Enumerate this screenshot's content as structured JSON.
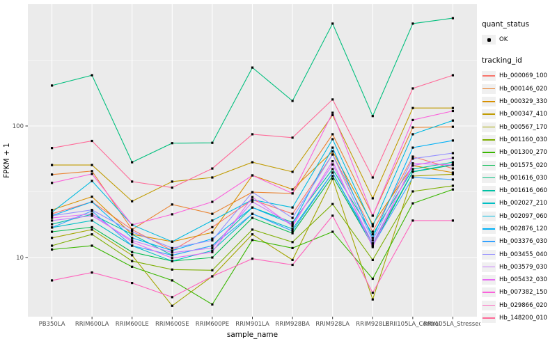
{
  "figure": {
    "background": "#FFFFFF",
    "panel_background": "#EBEBEB",
    "grid_color": "#FFFFFF",
    "tick_color": "#333333",
    "tick_label_color": "#4D4D4D",
    "point_color": "#000000"
  },
  "axes": {
    "x_title": "sample_name",
    "y_title": "FPKM + 1",
    "y_tick_labels": [
      "100",
      "10"
    ],
    "y_tick_values": [
      100,
      10
    ],
    "y_minor_values": [
      316.23,
      31.62
    ]
  },
  "legend": {
    "quant_title": "quant_status",
    "quant_items": [
      {
        "label": "OK"
      }
    ],
    "tracking_title": "tracking_id"
  },
  "chart_data": {
    "type": "line",
    "title": "",
    "xlabel": "sample_name",
    "ylabel": "FPKM + 1",
    "y_scale": "log10",
    "ylim": [
      3.5,
      850
    ],
    "grid": true,
    "legend_position": "right",
    "point_marker": "filled-square",
    "x_categories": [
      "PB350LA",
      "RRIM600LA",
      "RRIM600LE",
      "RRIM600SE",
      "RRIM600PE",
      "RRIM901LA",
      "RRIM928BA",
      "RRIM928LA",
      "RRIM928LE",
      "RRII105LA_Control",
      "RRII105LA_Stressed"
    ],
    "series": [
      {
        "name": "Hb_000069_100",
        "color": "#F8766D",
        "values": [
          21.5,
          26.5,
          16.3,
          11.3,
          17.0,
          27.5,
          21.5,
          60.7,
          15.7,
          58.5,
          47.5
        ]
      },
      {
        "name": "Hb_000146_020",
        "color": "#EA8331",
        "values": [
          42.7,
          45.4,
          16.3,
          25.3,
          21.5,
          31.4,
          30.7,
          86.5,
          20.8,
          97.5,
          98.6
        ]
      },
      {
        "name": "Hb_000329_330",
        "color": "#D89000",
        "values": [
          23.0,
          29.0,
          15.0,
          13.2,
          15.5,
          42.1,
          33.0,
          64.0,
          17.9,
          50.0,
          44.2
        ]
      },
      {
        "name": "Hb_000347_410",
        "color": "#C09B00",
        "values": [
          50.5,
          50.5,
          26.8,
          37.8,
          40.6,
          53.0,
          44.8,
          121.0,
          28.2,
          137.0,
          137.0
        ]
      },
      {
        "name": "Hb_000567_170",
        "color": "#A3A500",
        "values": [
          14.1,
          16.3,
          10.4,
          4.3,
          7.2,
          15.0,
          9.6,
          39.6,
          4.8,
          41.6,
          43.0
        ]
      },
      {
        "name": "Hb_001160_030",
        "color": "#7CAE00",
        "values": [
          12.3,
          15.0,
          9.4,
          8.1,
          8.0,
          16.3,
          13.1,
          25.5,
          9.6,
          31.8,
          35.1
        ]
      },
      {
        "name": "Hb_001300_270",
        "color": "#39B600",
        "values": [
          11.5,
          12.3,
          8.5,
          6.7,
          4.4,
          13.6,
          11.8,
          15.7,
          6.9,
          25.8,
          32.9
        ]
      },
      {
        "name": "Hb_001575_020",
        "color": "#00BB4E",
        "values": [
          15.7,
          17.0,
          11.0,
          9.4,
          10.0,
          20.0,
          15.3,
          41.6,
          12.3,
          44.8,
          50.5
        ]
      },
      {
        "name": "Hb_001616_030",
        "color": "#00BF7D",
        "values": [
          203,
          243,
          53,
          74,
          74.5,
          278,
          155,
          600,
          119,
          600,
          660
        ]
      },
      {
        "name": "Hb_001616_060",
        "color": "#00C1A3",
        "values": [
          17.9,
          21.3,
          15.0,
          10.4,
          12.3,
          24.0,
          18.5,
          47.0,
          15.0,
          47.0,
          53.0
        ]
      },
      {
        "name": "Hb_002027_210",
        "color": "#00BFC4",
        "values": [
          16.9,
          19.1,
          12.3,
          9.4,
          11.3,
          21.5,
          16.5,
          44.2,
          12.8,
          45.0,
          51.0
        ]
      },
      {
        "name": "Hb_002097_060",
        "color": "#00BAE0",
        "values": [
          22.1,
          38.2,
          17.7,
          13.2,
          19.1,
          27.5,
          24.0,
          79.3,
          17.3,
          86.5,
          110.0
        ]
      },
      {
        "name": "Hb_002876_120",
        "color": "#00B0F6",
        "values": [
          20.8,
          26.5,
          14.1,
          11.3,
          13.9,
          24.0,
          17.9,
          68.5,
          14.1,
          68.5,
          77.5
        ]
      },
      {
        "name": "Hb_003376_030",
        "color": "#35A2FF",
        "values": [
          16.9,
          22.6,
          12.3,
          10.4,
          12.3,
          21.5,
          15.9,
          44.2,
          12.3,
          40.6,
          39.2
        ]
      },
      {
        "name": "Hb_003455_040",
        "color": "#9590FF",
        "values": [
          20.8,
          23.0,
          15.7,
          11.8,
          13.5,
          31.4,
          20.0,
          60.7,
          13.5,
          56.5,
          62.2
        ]
      },
      {
        "name": "Hb_003579_030",
        "color": "#C77CFF",
        "values": [
          19.1,
          20.8,
          13.5,
          10.9,
          11.8,
          26.5,
          17.9,
          51.0,
          12.8,
          50.0,
          57.2
        ]
      },
      {
        "name": "Hb_005432_030",
        "color": "#E76BF3",
        "values": [
          20.0,
          21.5,
          13.1,
          9.9,
          11.0,
          28.8,
          17.3,
          54.0,
          12.0,
          52.0,
          50.5
        ]
      },
      {
        "name": "Hb_007382_150",
        "color": "#FA62DB",
        "values": [
          36.9,
          43.2,
          17.7,
          21.3,
          26.5,
          42.1,
          30.7,
          126.0,
          20.8,
          111.0,
          130.0
        ]
      },
      {
        "name": "Hb_029866_020",
        "color": "#FF62BC",
        "values": [
          6.7,
          7.7,
          6.4,
          5.0,
          7.2,
          9.8,
          8.8,
          20.8,
          5.4,
          19.1,
          19.1
        ]
      },
      {
        "name": "Hb_148200_010",
        "color": "#FF6A98",
        "values": [
          68,
          77,
          37.8,
          34,
          47.5,
          86.5,
          81.5,
          159,
          40.6,
          193,
          243
        ]
      }
    ]
  }
}
